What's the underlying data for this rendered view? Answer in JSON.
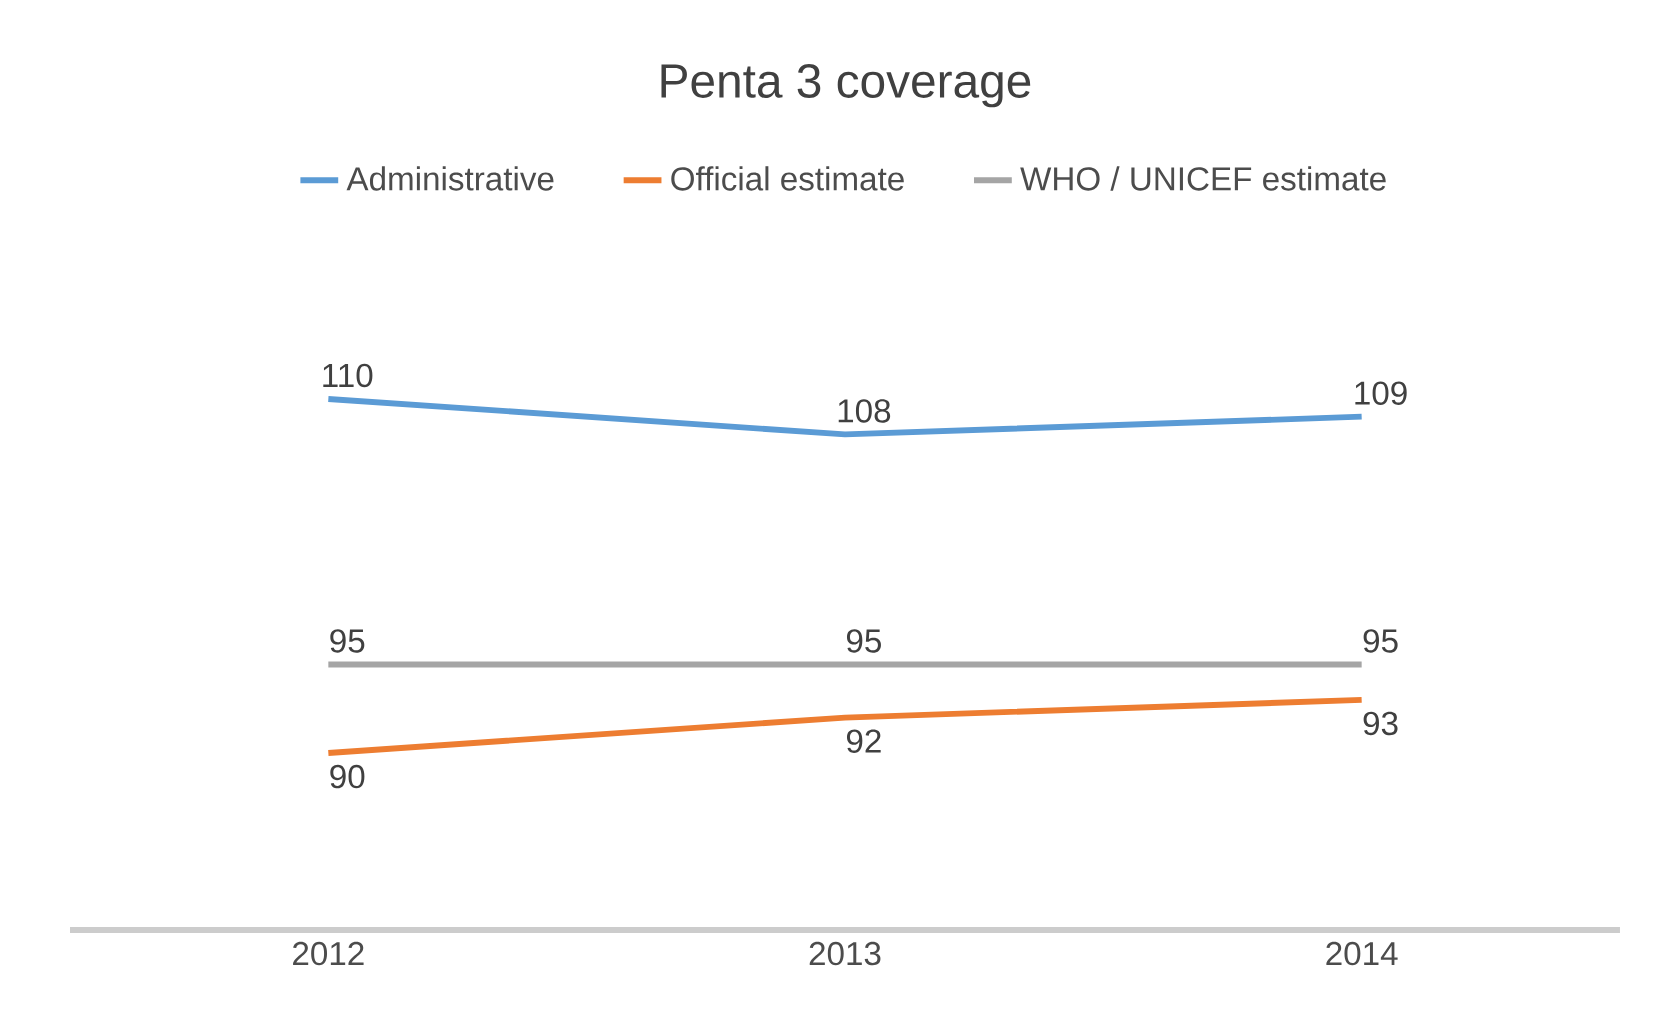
{
  "chart_data": {
    "type": "line",
    "title": "Penta 3 coverage",
    "categories": [
      "2012",
      "2013",
      "2014"
    ],
    "series": [
      {
        "name": "Administrative",
        "color": "#5b9bd5",
        "values": [
          110,
          108,
          109
        ]
      },
      {
        "name": "Official estimate",
        "color": "#ed7d31",
        "values": [
          90,
          92,
          93
        ]
      },
      {
        "name": "WHO / UNICEF estimate",
        "color": "#a5a5a5",
        "values": [
          95,
          95,
          95
        ]
      }
    ],
    "tick_labels": "x",
    "data_labels": true,
    "legend": "top",
    "marker": "none",
    "line_style": "solid"
  }
}
